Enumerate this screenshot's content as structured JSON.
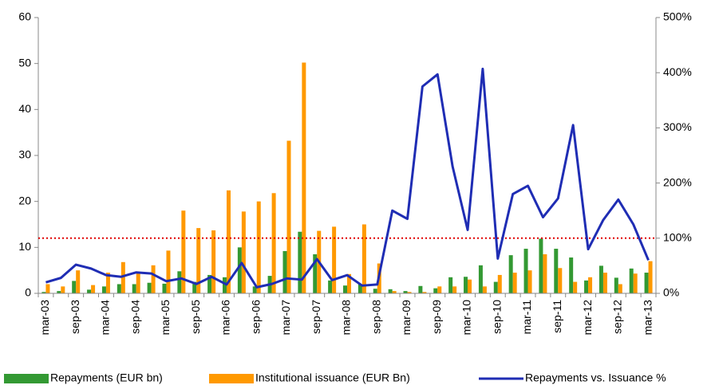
{
  "chart_data": {
    "type": "bar",
    "categories": [
      "mar-03",
      null,
      "sep-03",
      null,
      "mar-04",
      null,
      "sep-04",
      null,
      "mar-05",
      null,
      "sep-05",
      null,
      "mar-06",
      null,
      "sep-06",
      null,
      "mar-07",
      null,
      "sep-07",
      null,
      "mar-08",
      null,
      "sep-08",
      null,
      "mar-09",
      null,
      "sep-09",
      null,
      "mar-10",
      null,
      "sep-10",
      null,
      "mar-11",
      null,
      "sep-11",
      null,
      "mar-12",
      null,
      "sep-12",
      null,
      "mar-13"
    ],
    "series": [
      {
        "name": "Repayments (EUR bn)",
        "color": "#339933",
        "values": [
          0.3,
          0.5,
          2.7,
          0.8,
          1.5,
          2,
          2,
          2.3,
          2.1,
          4.8,
          2.5,
          4,
          3.5,
          10,
          1.5,
          3.8,
          9.2,
          13.4,
          8.5,
          2.8,
          1.7,
          2,
          1,
          0.9,
          0.5,
          1.6,
          1.1,
          3.5,
          3.6,
          6.1,
          2.5,
          8.3,
          9.7,
          11.9,
          9.7,
          7.8,
          2.8,
          6,
          3.4,
          5.4,
          4.5
        ]
      },
      {
        "name": "Institutional issuance (EUR Bn)",
        "color": "#ff9900",
        "values": [
          2,
          1.5,
          5,
          1.8,
          4.5,
          6.8,
          4.5,
          6.1,
          9.3,
          18,
          14.2,
          13.7,
          22.4,
          17.8,
          20,
          21.8,
          33.2,
          50.2,
          13.6,
          14.5,
          4.2,
          15,
          6.5,
          0.5,
          0.3,
          0.3,
          1.5,
          1.5,
          3,
          1.5,
          4,
          4.5,
          5,
          8.5,
          5.5,
          2.5,
          3.5,
          4.5,
          2,
          4.3,
          7
        ]
      },
      {
        "name": "Repayments vs. Issuance %",
        "color": "#1f2db4",
        "type": "line",
        "axis": "y2",
        "values": [
          20,
          28,
          52,
          45,
          33,
          30,
          38,
          36,
          22,
          27,
          17,
          30,
          16,
          55,
          11,
          17,
          27,
          25,
          62,
          24,
          33,
          14,
          16,
          150,
          135,
          375,
          397,
          230,
          115,
          407,
          63,
          180,
          195,
          138,
          172,
          305,
          80,
          133,
          170,
          125,
          60
        ]
      }
    ],
    "ylim": [
      0,
      60
    ],
    "yticks": [
      0,
      10,
      20,
      30,
      40,
      50,
      60
    ],
    "y2lim": [
      0,
      500
    ],
    "y2ticks": [
      {
        "value": 0,
        "label": "0%"
      },
      {
        "value": 100,
        "label": "100%"
      },
      {
        "value": 200,
        "label": "200%"
      },
      {
        "value": 300,
        "label": "300%"
      },
      {
        "value": 400,
        "label": "400%"
      },
      {
        "value": 500,
        "label": "500%"
      }
    ],
    "reference_line": {
      "axis": "y2",
      "value": 100,
      "color": "#e00000"
    },
    "legend": "bottom"
  }
}
